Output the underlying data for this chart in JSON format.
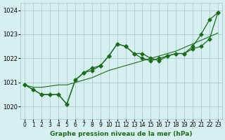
{
  "x": [
    0,
    1,
    2,
    3,
    4,
    5,
    6,
    7,
    8,
    9,
    10,
    11,
    12,
    13,
    14,
    15,
    16,
    17,
    18,
    19,
    20,
    21,
    22,
    23
  ],
  "line1": [
    1020.9,
    1020.7,
    1020.5,
    1020.5,
    1020.5,
    1020.1,
    1021.1,
    1021.4,
    1021.6,
    1021.7,
    1022.1,
    1022.6,
    1022.5,
    1022.2,
    1022.2,
    1022.0,
    1021.9,
    1022.1,
    1022.2,
    1022.2,
    1022.5,
    1023.0,
    1023.6,
    1023.9
  ],
  "line2": [
    1020.9,
    1020.7,
    1020.5,
    1020.5,
    1020.5,
    1020.1,
    1021.1,
    1021.4,
    1021.5,
    1021.7,
    1022.1,
    1022.6,
    1022.5,
    1022.2,
    1022.0,
    1021.9,
    1022.0,
    1022.1,
    1022.2,
    1022.2,
    1022.4,
    1022.5,
    1022.8,
    1023.9
  ],
  "smooth_line": [
    1020.9,
    1020.8,
    1020.8,
    1020.85,
    1020.9,
    1020.9,
    1021.0,
    1021.1,
    1021.2,
    1021.35,
    1021.5,
    1021.6,
    1021.7,
    1021.8,
    1021.9,
    1022.0,
    1022.1,
    1022.2,
    1022.3,
    1022.45,
    1022.6,
    1022.75,
    1022.9,
    1023.05
  ],
  "line_color": "#1a6b1a",
  "bg_color": "#d6f0f0",
  "grid_color": "#a0c8c8",
  "xlabel": "Graphe pression niveau de la mer (hPa)",
  "ylim": [
    1019.5,
    1024.3
  ],
  "xlim": [
    -0.5,
    23.5
  ],
  "yticks": [
    1020,
    1021,
    1022,
    1023,
    1024
  ],
  "xtick_labels": [
    "0",
    "1",
    "2",
    "3",
    "4",
    "5",
    "6",
    "7",
    "8",
    "9",
    "10",
    "11",
    "12",
    "13",
    "14",
    "15",
    "16",
    "17",
    "18",
    "19",
    "20",
    "21",
    "22",
    "23"
  ]
}
